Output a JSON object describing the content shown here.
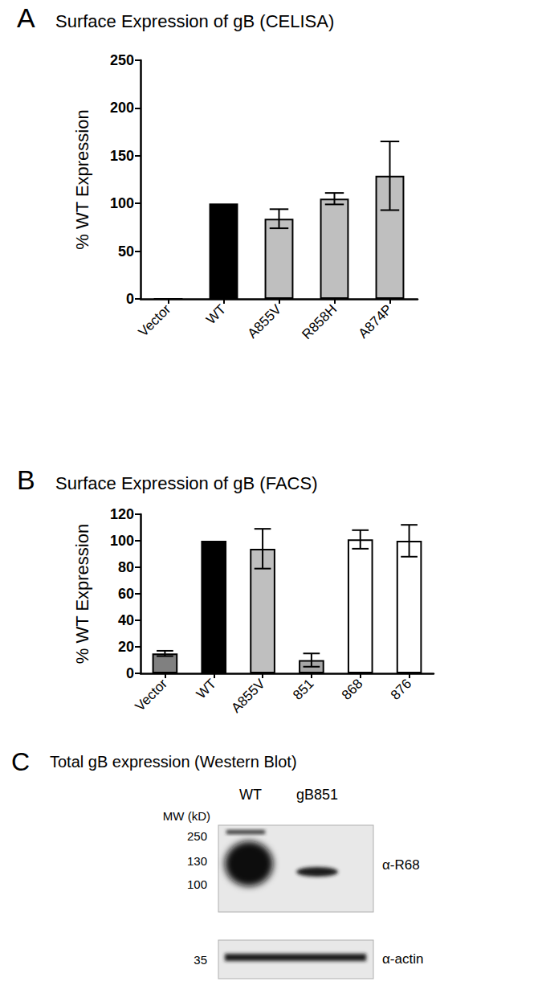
{
  "chart_data": [
    {
      "type": "bar",
      "annotations": [
        "A"
      ],
      "title": "Surface Expression of gB (CELISA)",
      "y_label": "% WT Expression",
      "categories": [
        "Vector",
        "WT",
        "A855V",
        "R858H",
        "A874P"
      ],
      "values": [
        0,
        100,
        84,
        105,
        129
      ],
      "errors": [
        0,
        0,
        10,
        6,
        36
      ],
      "colors": [
        "#ffffff",
        "#000000",
        "#bfbfbf",
        "#bfbfbf",
        "#bfbfbf"
      ],
      "ylim": [
        0,
        250
      ],
      "yticks": [
        0,
        50,
        100,
        150,
        200,
        250
      ],
      "grid": false
    },
    {
      "type": "bar",
      "annotations": [
        "B"
      ],
      "title": "Surface Expression of gB (FACS)",
      "y_label": "% WT Expression",
      "categories": [
        "Vector",
        "WT",
        "A855V",
        "851",
        "868",
        "876"
      ],
      "values": [
        15,
        100,
        94,
        10,
        101,
        100
      ],
      "errors": [
        2,
        0,
        15,
        5,
        7,
        12
      ],
      "colors": [
        "#808080",
        "#000000",
        "#bfbfbf",
        "#a6a6a6",
        "#ffffff",
        "#ffffff"
      ],
      "ylim": [
        0,
        120
      ],
      "yticks": [
        0,
        20,
        40,
        60,
        80,
        100,
        120
      ],
      "grid": false
    }
  ],
  "western_blot": {
    "annotations": [
      "C"
    ],
    "title": "Total gB expression (Western Blot)",
    "mw_label": "MW (kD)",
    "lanes": [
      "WT",
      "gB851"
    ],
    "rows": [
      {
        "antibody": "α-R68",
        "mw_markers": [
          250,
          130,
          100
        ]
      },
      {
        "antibody": "α-actin",
        "mw_markers": [
          35
        ]
      }
    ]
  }
}
